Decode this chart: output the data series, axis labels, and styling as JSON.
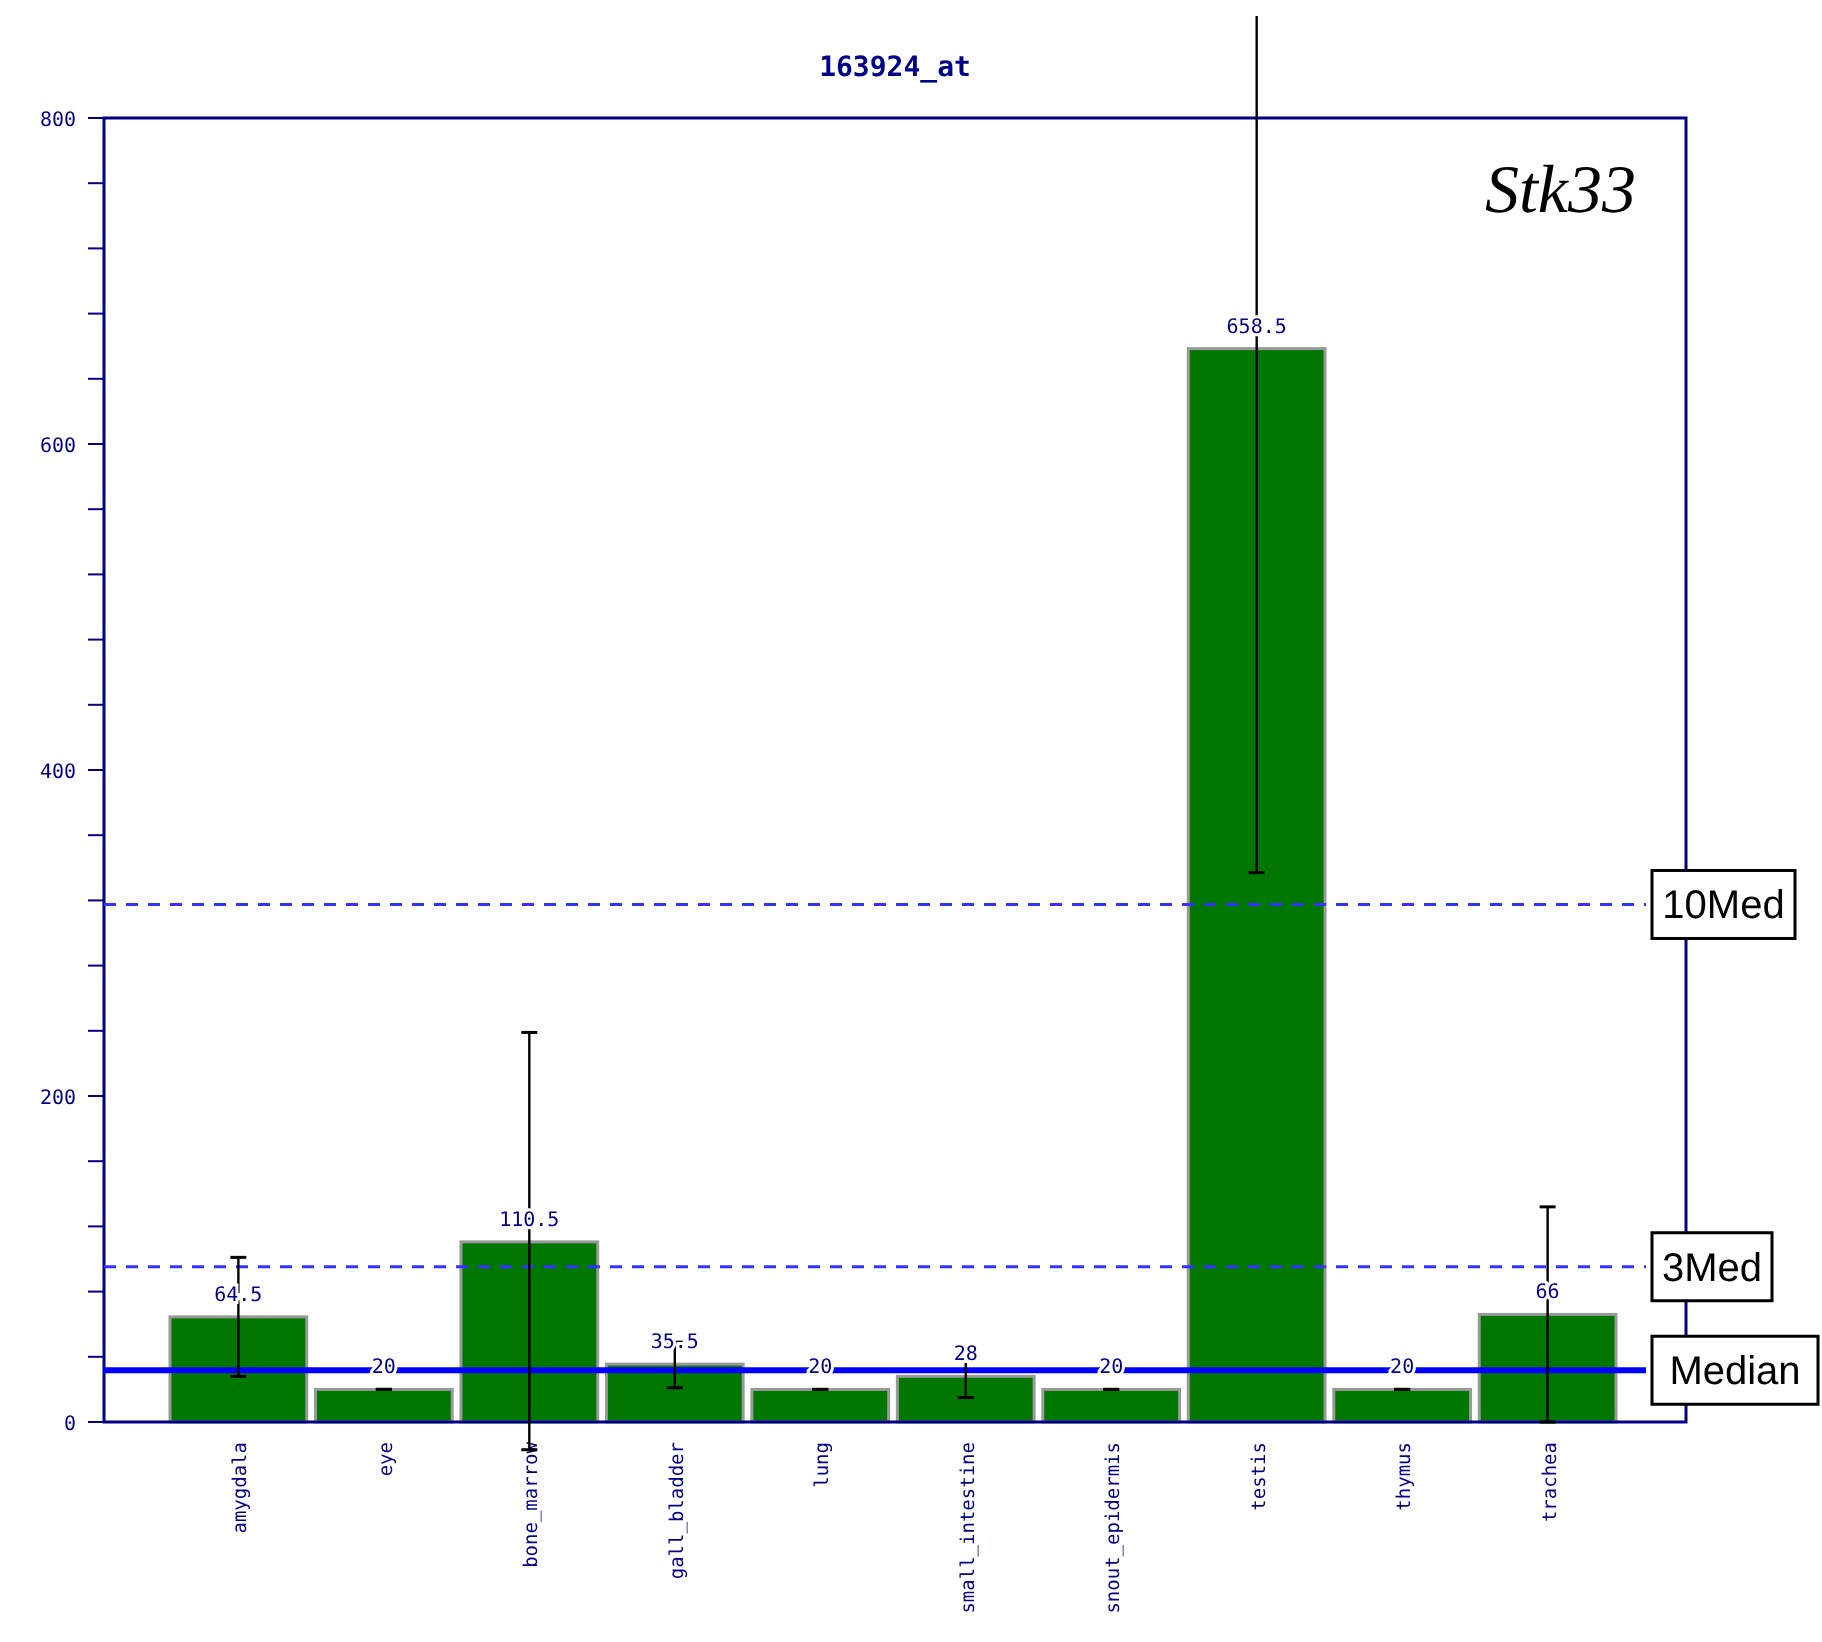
{
  "chart_data": {
    "type": "bar",
    "title": "163924_at",
    "categories": [
      "amygdala",
      "eye",
      "bone_marrow",
      "gall_bladder",
      "lung",
      "small_intestine",
      "snout_epidermis",
      "testis",
      "thymus",
      "trachea"
    ],
    "values": [
      64.5,
      20,
      110.5,
      35.5,
      20,
      28,
      20,
      658.5,
      20,
      66
    ],
    "errors": [
      [
        28,
        101
      ],
      0,
      [
        -17,
        239
      ],
      [
        21,
        49
      ],
      0,
      [
        15,
        39
      ],
      0,
      [
        337,
        980
      ],
      0,
      [
        0,
        132
      ]
    ],
    "color": "#007700",
    "data_labels": true,
    "ylim": [
      0,
      800
    ],
    "yticks": [
      0,
      {
        "value": 40,
        "label": null
      },
      {
        "value": 80,
        "label": null
      },
      {
        "value": 120,
        "label": null
      },
      {
        "value": 160,
        "label": null
      },
      200,
      {
        "value": 240,
        "label": null
      },
      {
        "value": 280,
        "label": null
      },
      {
        "value": 320,
        "label": null
      },
      {
        "value": 360,
        "label": null
      },
      400,
      {
        "value": 440,
        "label": null
      },
      {
        "value": 480,
        "label": null
      },
      {
        "value": 520,
        "label": null
      },
      {
        "value": 560,
        "label": null
      },
      600,
      {
        "value": 640,
        "label": null
      },
      {
        "value": 680,
        "label": null
      },
      {
        "value": 720,
        "label": null
      },
      {
        "value": 760,
        "label": null
      },
      800
    ],
    "ref_lines": [
      {
        "axis": "y",
        "value": 31.75,
        "label": "Median",
        "color": "#0000ff",
        "line_style": "solid"
      },
      {
        "axis": "y",
        "value": 95.25,
        "label": "3Med",
        "color": "#3333ff",
        "line_style": "dashed"
      },
      {
        "axis": "y",
        "value": 317.5,
        "label": "10Med",
        "color": "#3333ff",
        "line_style": "dashed"
      }
    ],
    "annotations": [
      "Stk33"
    ],
    "grid": false
  }
}
